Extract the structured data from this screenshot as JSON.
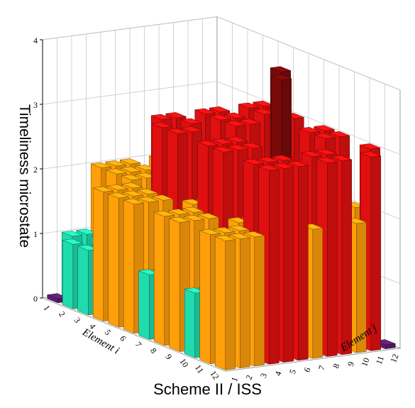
{
  "chart_data": {
    "type": "bar3d",
    "zlabel": "Timeliness microstate",
    "xlabel": "Element i",
    "ylabel": "Element j",
    "caption": "Scheme II / ISS",
    "i_ticks": [
      "1",
      "2",
      "3",
      "4",
      "5",
      "6",
      "7",
      "8",
      "9",
      "10",
      "11",
      "12"
    ],
    "j_ticks": [
      "1",
      "2",
      "3",
      "4",
      "5",
      "6",
      "7",
      "8",
      "9",
      "10",
      "11",
      "12"
    ],
    "z_ticks": [
      "0",
      "1",
      "2",
      "3",
      "4"
    ],
    "zlim": [
      0,
      4
    ],
    "grid": true,
    "colors": {
      "0": "#5a1d6e",
      "1": "#1fdcae",
      "2": "#ff9f0a",
      "3": "#e01010",
      "4": "#7a0a0a"
    },
    "values": [
      [
        0,
        1,
        1,
        2,
        2,
        2,
        1,
        2,
        2,
        1,
        2,
        2
      ],
      [
        1,
        0,
        1,
        2,
        2,
        2,
        1,
        2,
        2,
        1,
        2,
        2
      ],
      [
        1,
        1,
        0,
        2,
        2,
        2,
        1,
        2,
        2,
        1,
        2,
        2
      ],
      [
        2,
        2,
        2,
        0,
        3,
        3,
        2,
        3,
        3,
        2,
        3,
        3
      ],
      [
        2,
        2,
        2,
        3,
        0,
        3,
        2,
        3,
        3,
        2,
        3,
        3
      ],
      [
        2,
        2,
        2,
        3,
        3,
        0,
        2,
        3,
        3,
        2,
        3,
        3
      ],
      [
        1,
        1,
        1,
        2,
        2,
        2,
        0,
        2,
        2,
        1,
        2,
        2
      ],
      [
        2,
        2,
        2,
        3,
        3,
        3,
        2,
        0,
        4,
        2,
        3,
        3
      ],
      [
        2,
        2,
        2,
        3,
        3,
        3,
        2,
        4,
        0,
        2,
        3,
        3
      ],
      [
        1,
        1,
        1,
        2,
        2,
        2,
        1,
        2,
        2,
        0,
        2,
        2
      ],
      [
        2,
        2,
        2,
        3,
        3,
        3,
        2,
        3,
        3,
        2,
        0,
        3
      ],
      [
        2,
        2,
        2,
        3,
        3,
        3,
        2,
        3,
        3,
        2,
        3,
        0
      ]
    ]
  }
}
